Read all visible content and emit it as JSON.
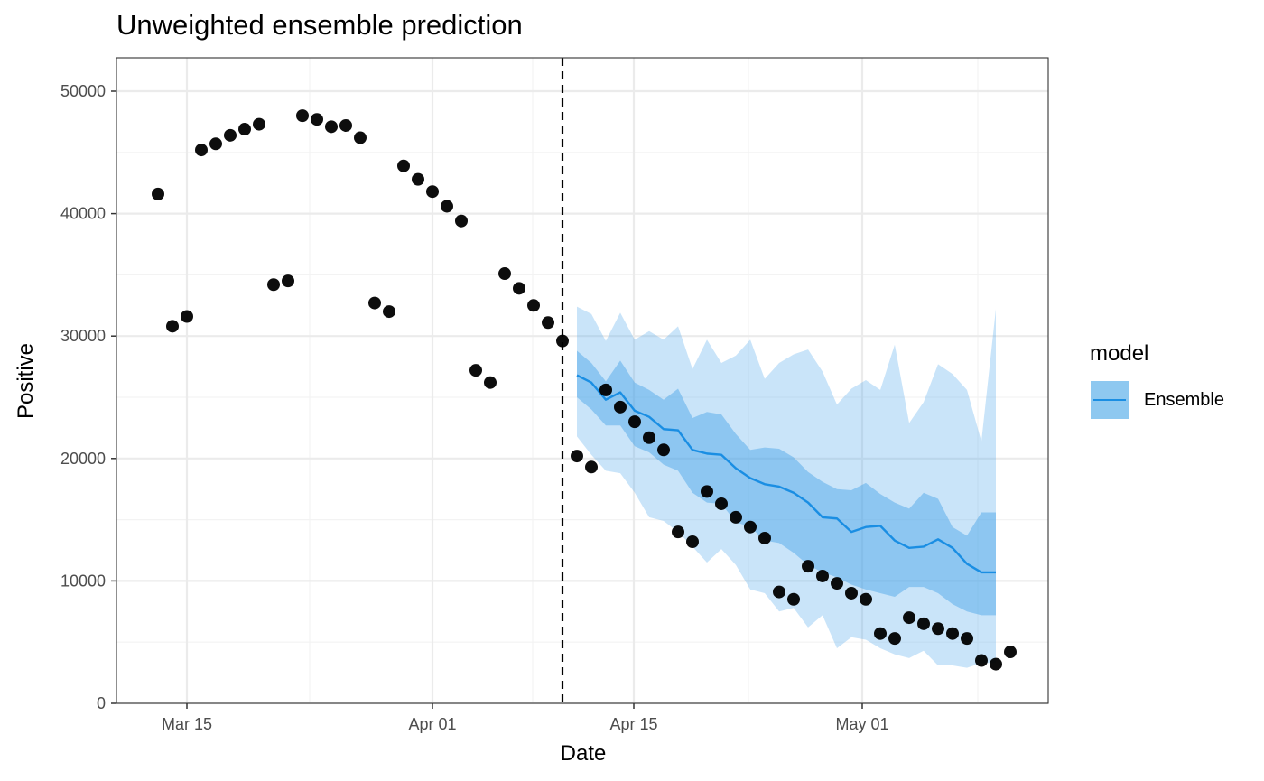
{
  "chart_data": {
    "type": "line",
    "title": "Unweighted ensemble prediction",
    "xlabel": "Date",
    "ylabel": "Positive",
    "ylim": [
      0,
      52500
    ],
    "y_ticks": [
      0,
      10000,
      20000,
      30000,
      40000,
      50000
    ],
    "y_tick_labels": [
      "0",
      "10000",
      "20000",
      "30000",
      "40000",
      "50000"
    ],
    "x_ticks": [
      "Mar 15",
      "Apr 01",
      "Apr 15",
      "May 01"
    ],
    "x_range": [
      "Mar 10",
      "May 12"
    ],
    "grid": true,
    "legend": {
      "title": "model",
      "entries": [
        "Ensemble"
      ],
      "position": "right"
    },
    "forecast_start_line": "Apr 10",
    "observed": {
      "name": "Observed",
      "style": "points",
      "color": "#000000",
      "x": [
        "Mar 13",
        "Mar 14",
        "Mar 15",
        "Mar 16",
        "Mar 17",
        "Mar 18",
        "Mar 19",
        "Mar 20",
        "Mar 21",
        "Mar 22",
        "Mar 23",
        "Mar 24",
        "Mar 25",
        "Mar 26",
        "Mar 27",
        "Mar 28",
        "Mar 29",
        "Mar 30",
        "Mar 31",
        "Apr 01",
        "Apr 02",
        "Apr 03",
        "Apr 04",
        "Apr 05",
        "Apr 06",
        "Apr 07",
        "Apr 08",
        "Apr 09",
        "Apr 10",
        "Apr 11",
        "Apr 12",
        "Apr 13",
        "Apr 14",
        "Apr 15",
        "Apr 16",
        "Apr 17",
        "Apr 18",
        "Apr 19",
        "Apr 20",
        "Apr 21",
        "Apr 22",
        "Apr 23",
        "Apr 24",
        "Apr 25",
        "Apr 26",
        "Apr 27",
        "Apr 28",
        "Apr 29",
        "Apr 30",
        "May 01",
        "May 02",
        "May 03",
        "May 04",
        "May 05",
        "May 06",
        "May 07",
        "May 08",
        "May 09",
        "May 10",
        "May 11"
      ],
      "values": [
        41600,
        30800,
        31600,
        45200,
        45700,
        46400,
        46900,
        47300,
        34200,
        34500,
        48000,
        47700,
        47100,
        47200,
        46200,
        32700,
        32000,
        43900,
        42800,
        41800,
        40600,
        39400,
        27200,
        26200,
        35100,
        33900,
        32500,
        31100,
        29600,
        20200,
        19300,
        25600,
        24200,
        23000,
        21700,
        20700,
        14000,
        13200,
        17300,
        16300,
        15200,
        14400,
        13500,
        9100,
        8500,
        11200,
        10400,
        9800,
        9000,
        8500,
        5700,
        5300,
        7000,
        6500,
        6100,
        5700,
        5300,
        3500,
        3200,
        4200
      ]
    },
    "x": [
      "Apr 11",
      "Apr 12",
      "Apr 13",
      "Apr 14",
      "Apr 15",
      "Apr 16",
      "Apr 17",
      "Apr 18",
      "Apr 19",
      "Apr 20",
      "Apr 21",
      "Apr 22",
      "Apr 23",
      "Apr 24",
      "Apr 25",
      "Apr 26",
      "Apr 27",
      "Apr 28",
      "Apr 29",
      "Apr 30",
      "May 01",
      "May 02",
      "May 03",
      "May 04",
      "May 05",
      "May 06",
      "May 07",
      "May 08",
      "May 09",
      "May 10",
      "May 11"
    ],
    "series": [
      {
        "name": "Ensemble",
        "color": "#1a8ee3",
        "median": [
          26800,
          26200,
          24800,
          25400,
          23900,
          23400,
          22400,
          22300,
          20700,
          20400,
          20300,
          19200,
          18400,
          17900,
          17700,
          17200,
          16400,
          15200,
          15100,
          14000,
          14400,
          14500,
          13300,
          12700,
          12800,
          13400,
          12700,
          11400,
          10700,
          10700,
          10700
        ],
        "inner_upper": [
          28800,
          27800,
          26300,
          28000,
          26200,
          25600,
          24800,
          25700,
          23300,
          23800,
          23600,
          22000,
          20700,
          20900,
          20800,
          20100,
          18900,
          18100,
          17500,
          17400,
          18000,
          17100,
          16400,
          15900,
          17200,
          16700,
          14400,
          13700,
          15600,
          15600,
          15600
        ],
        "inner_lower": [
          25000,
          24000,
          22700,
          22700,
          21000,
          20500,
          19500,
          19000,
          17200,
          16400,
          16300,
          14800,
          14400,
          13300,
          13100,
          12300,
          11300,
          10700,
          10300,
          9700,
          9300,
          9000,
          8700,
          9500,
          9500,
          9000,
          8100,
          7500,
          7200,
          7200,
          7200
        ],
        "outer_upper": [
          32400,
          31800,
          29600,
          31900,
          29700,
          30400,
          29700,
          30800,
          27300,
          29700,
          27800,
          28400,
          29700,
          26500,
          27800,
          28500,
          28900,
          27100,
          24400,
          25700,
          26400,
          25600,
          29300,
          22900,
          24600,
          27700,
          26900,
          25600,
          21400,
          32200,
          32200
        ],
        "outer_lower": [
          21800,
          20300,
          19000,
          18800,
          17200,
          15200,
          14900,
          14000,
          12800,
          11500,
          12600,
          11300,
          9300,
          9000,
          7500,
          7800,
          6200,
          7200,
          4500,
          5400,
          5200,
          4500,
          4000,
          3700,
          4300,
          3100,
          3100,
          2900,
          3300,
          3300,
          3300
        ]
      }
    ]
  },
  "legend": {
    "title": "model",
    "label": "Ensemble"
  },
  "colors": {
    "outer_band": "#c9e4f8",
    "inner_band": "#8ec8f0",
    "median_line": "#1a8ee3",
    "points": "#000000",
    "grid_major": "#ebebeb",
    "grid_minor": "#f3f3f3",
    "panel_border": "#333333",
    "axis_text": "#4d4d4d"
  }
}
